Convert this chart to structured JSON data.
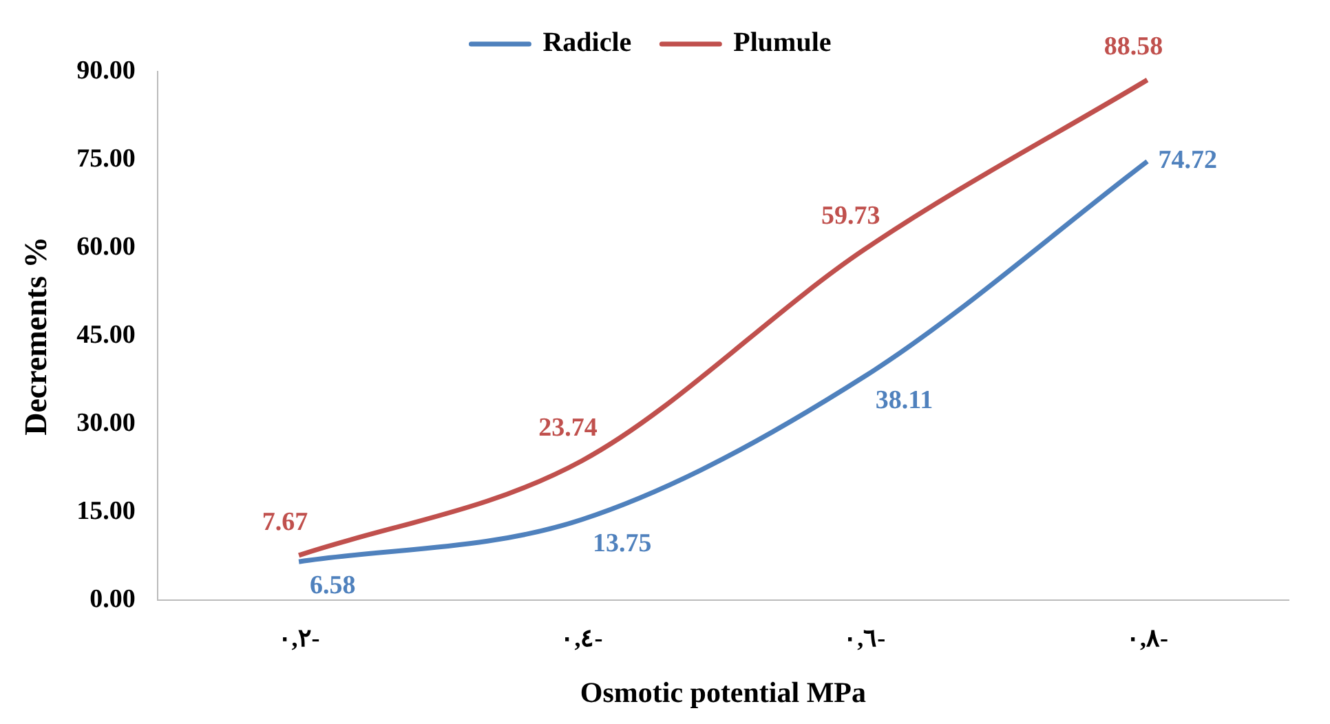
{
  "chart_data": {
    "type": "line",
    "xlabel": "Osmotic potential MPa",
    "ylabel": "Decrements %",
    "categories": [
      "٠,٢-",
      "٠,٤-",
      "٠,٦-",
      "٠,٨-"
    ],
    "series": [
      {
        "name": "Radicle",
        "color": "#4f81bd",
        "values": [
          6.58,
          13.75,
          38.11,
          74.72
        ]
      },
      {
        "name": "Plumule",
        "color": "#c0504d",
        "values": [
          7.67,
          23.74,
          59.73,
          88.58
        ]
      }
    ],
    "ylim": [
      0,
      90
    ],
    "yticks": [
      {
        "value": 0,
        "label": "0.00"
      },
      {
        "value": 15,
        "label": "15.00"
      },
      {
        "value": 30,
        "label": "30.00"
      },
      {
        "value": 45,
        "label": "45.00"
      },
      {
        "value": 60,
        "label": "60.00"
      },
      {
        "value": 75,
        "label": "75.00"
      },
      {
        "value": 90,
        "label": "90.00"
      }
    ],
    "data_labels": true,
    "legend": "top",
    "grid": false,
    "marker": "none",
    "line_style": "solid"
  }
}
